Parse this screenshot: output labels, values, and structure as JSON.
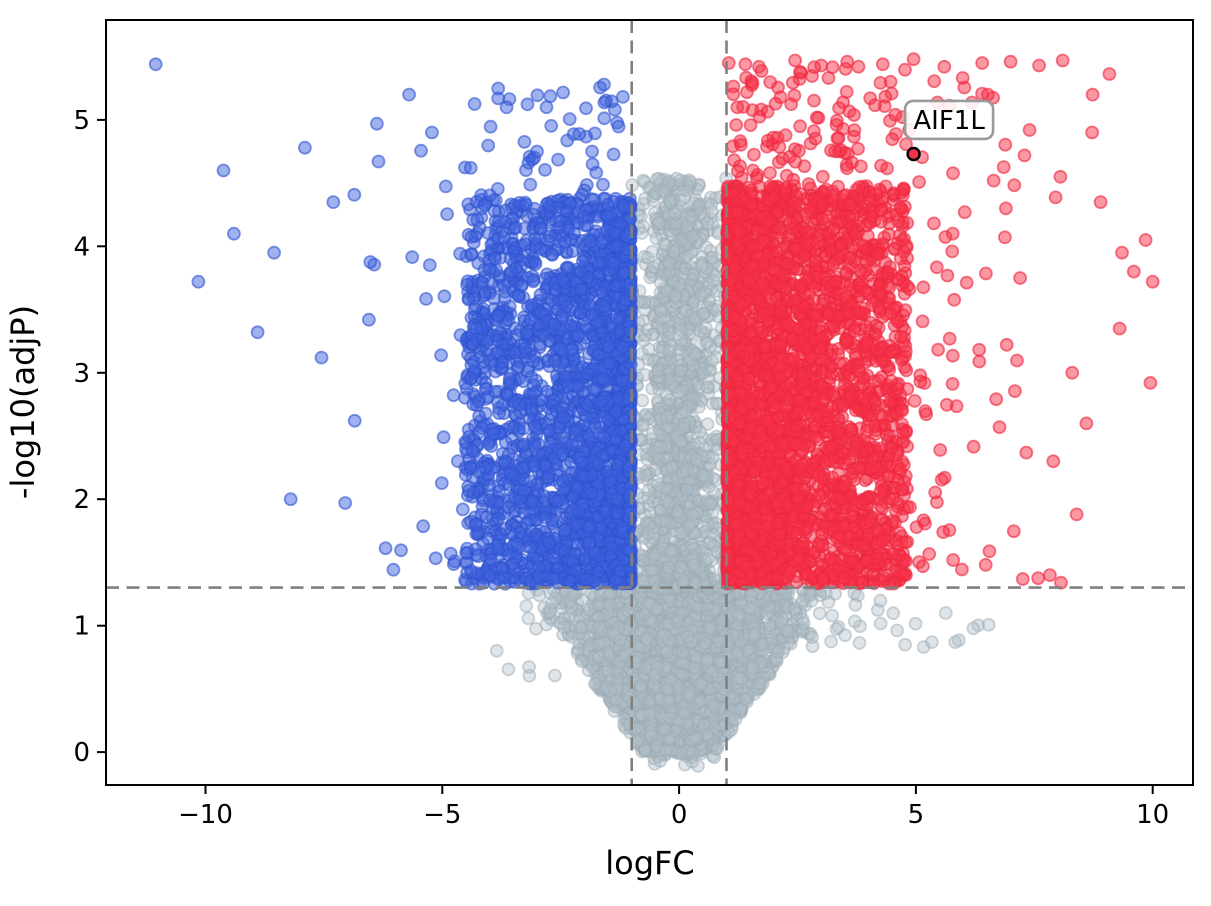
{
  "figure": {
    "background": "#ffffff"
  },
  "chart_data": {
    "type": "scatter",
    "variant": "volcano-plot",
    "title": "",
    "xlabel": "logFC",
    "ylabel": "-log10(adjP)",
    "xlim": [
      -12.1,
      10.85
    ],
    "ylim": [
      -0.26,
      5.79
    ],
    "xticks": {
      "values": [
        -10,
        -5,
        0,
        5,
        10
      ],
      "labels": [
        "−10",
        "−5",
        "0",
        "5",
        "10"
      ]
    },
    "yticks": {
      "values": [
        0,
        1,
        2,
        3,
        4,
        5
      ],
      "labels": [
        "0",
        "1",
        "2",
        "3",
        "4",
        "5"
      ]
    },
    "grid": false,
    "legend": null,
    "threshold_lines": {
      "vertical_x": [
        -1,
        1
      ],
      "horizontal_y": 1.301,
      "color": "#808080",
      "style": "dashed",
      "dash": "13 7.5",
      "width": 2.6
    },
    "marker": {
      "radius": 6,
      "edge_width": 1.8
    },
    "colors": {
      "nonsignificant": "#b1bec7",
      "downregulated": "#3f63de",
      "upregulated": "#f83248",
      "highlight_fill": "#f2334b",
      "highlight_edge": "#000000"
    },
    "alpha": 0.5,
    "seed": 42,
    "annotation": {
      "label": "AIF1L",
      "point": {
        "x": 4.95,
        "y": 4.73
      },
      "label_center": {
        "x": 5.7,
        "y": 5.0
      },
      "box": {
        "border": "#999999",
        "background": "rgba(255,255,255,0.85)",
        "border_width": 2.6,
        "radius": 8
      }
    },
    "highlight_point": {
      "gene": "AIF1L",
      "x": 4.95,
      "y": 4.73
    },
    "series": [
      {
        "name": "nonsignificant-funnel",
        "role": "nonsignificant",
        "fill": "rgba(177,190,199,0.42)",
        "stroke": "rgba(158,172,182,0.5)",
        "gen": {
          "kind": "funnel",
          "count": 2400,
          "xSigma": 1.05,
          "xMax": 4.0,
          "xFlat": 0.78,
          "slope": 0.54,
          "yTop": 1.29
        }
      },
      {
        "name": "nonsignificant-column",
        "role": "nonsignificant",
        "fill": "rgba(177,190,199,0.42)",
        "stroke": "rgba(158,172,182,0.5)",
        "gen": {
          "kind": "column",
          "count": 1300,
          "xSigma": 0.48,
          "xMin": -0.99,
          "xMax": 0.99,
          "yBase": 1.29,
          "ySpan": 3.25,
          "yPow": 1.5
        }
      },
      {
        "name": "nonsignificant-right-wing",
        "role": "nonsignificant",
        "fill": "rgba(177,190,199,0.42)",
        "stroke": "rgba(158,172,182,0.5)",
        "gen": {
          "kind": "band",
          "count": 40,
          "xMin": 2.6,
          "xMax": 6.6,
          "xPow": 1.5,
          "yMin": 0.82,
          "yMax": 1.27
        }
      },
      {
        "name": "nonsignificant-left-wing",
        "role": "nonsignificant",
        "fill": "rgba(177,190,199,0.42)",
        "stroke": "rgba(158,172,182,0.5)",
        "gen": {
          "kind": "band",
          "count": 12,
          "xMin": -3.85,
          "xMax": -2.55,
          "xPow": 1.0,
          "yMin": 0.6,
          "yMax": 1.27
        }
      },
      {
        "name": "downregulated-core",
        "role": "downregulated",
        "fill": "rgba(63,99,222,0.5)",
        "stroke": "rgba(48,84,208,0.6)",
        "gen": {
          "kind": "core",
          "count": 2300,
          "side": -1,
          "xEdge": -1.02,
          "xSpan": 3.5,
          "xPow": 1.8,
          "yBase": 1.33,
          "ySpan": 3.05,
          "yPow": 1.2
        }
      },
      {
        "name": "downregulated-scatter",
        "role": "downregulated",
        "fill": "rgba(63,99,222,0.5)",
        "stroke": "rgba(48,84,208,0.6)",
        "gen": {
          "kind": "scatter",
          "count": 290,
          "side": -1,
          "xStart": -1.1,
          "sigma": 2.1,
          "xMaxDist": 9.6,
          "yBase": 1.33,
          "ySpan": 3.95,
          "yPow": 1.3
        }
      },
      {
        "name": "downregulated-outliers",
        "role": "downregulated",
        "fill": "rgba(63,99,222,0.5)",
        "stroke": "rgba(48,84,208,0.6)",
        "gen": {
          "kind": "explicit"
        },
        "points": [
          [
            -11.05,
            5.44
          ],
          [
            -9.62,
            4.6
          ],
          [
            -10.15,
            3.72
          ],
          [
            -9.4,
            4.1
          ],
          [
            -8.9,
            3.32
          ],
          [
            -8.55,
            3.95
          ],
          [
            -8.2,
            2.0
          ],
          [
            -7.9,
            4.78
          ],
          [
            -7.55,
            3.12
          ],
          [
            -7.3,
            4.35
          ],
          [
            -7.05,
            1.97
          ],
          [
            -6.85,
            2.62
          ],
          [
            -6.55,
            3.42
          ],
          [
            -6.38,
            4.97
          ],
          [
            -5.7,
            5.2
          ],
          [
            -5.22,
            4.9
          ],
          [
            -3.82,
            5.17
          ],
          [
            -2.8,
            5.1
          ],
          [
            -4.4,
            4.62
          ],
          [
            -3.0,
            4.75
          ]
        ]
      },
      {
        "name": "upregulated-core",
        "role": "upregulated",
        "fill": "rgba(247,50,72,0.5)",
        "stroke": "rgba(238,40,64,0.62)",
        "gen": {
          "kind": "core",
          "count": 2900,
          "side": 1,
          "xEdge": 1.02,
          "xSpan": 3.8,
          "xPow": 1.8,
          "yBase": 1.33,
          "ySpan": 3.15,
          "yPow": 1.15
        }
      },
      {
        "name": "upregulated-scatter",
        "role": "upregulated",
        "fill": "rgba(247,50,72,0.5)",
        "stroke": "rgba(238,40,64,0.62)",
        "gen": {
          "kind": "scatter",
          "count": 540,
          "side": 1,
          "xStart": 1.1,
          "sigma": 2.5,
          "xMaxDist": 8.6,
          "yBase": 1.33,
          "ySpan": 4.1,
          "yPow": 1.1
        }
      },
      {
        "name": "upregulated-top-row",
        "role": "upregulated",
        "fill": "rgba(247,50,72,0.5)",
        "stroke": "rgba(238,40,64,0.62)",
        "gen": {
          "kind": "explicit"
        },
        "points": [
          [
            1.05,
            5.45
          ],
          [
            1.4,
            5.44
          ],
          [
            2.45,
            5.47
          ],
          [
            3.0,
            5.43
          ],
          [
            3.55,
            5.46
          ],
          [
            4.3,
            5.44
          ],
          [
            4.95,
            5.48
          ],
          [
            5.6,
            5.42
          ],
          [
            6.4,
            5.45
          ],
          [
            7.0,
            5.46
          ],
          [
            7.6,
            5.43
          ],
          [
            8.1,
            5.47
          ]
        ]
      },
      {
        "name": "upregulated-outliers",
        "role": "upregulated",
        "fill": "rgba(247,50,72,0.5)",
        "stroke": "rgba(238,40,64,0.62)",
        "gen": {
          "kind": "explicit"
        },
        "points": [
          [
            9.85,
            4.05
          ],
          [
            9.6,
            3.8
          ],
          [
            9.35,
            3.95
          ],
          [
            9.3,
            3.35
          ],
          [
            9.95,
            2.92
          ],
          [
            10.0,
            3.72
          ],
          [
            8.9,
            4.35
          ],
          [
            8.72,
            4.9
          ],
          [
            8.73,
            5.2
          ],
          [
            7.4,
            4.92
          ],
          [
            6.52,
            5.2
          ],
          [
            8.3,
            3.0
          ],
          [
            8.6,
            2.6
          ],
          [
            7.9,
            2.3
          ],
          [
            8.05,
            4.55
          ],
          [
            6.9,
            4.3
          ],
          [
            7.2,
            3.75
          ]
        ]
      }
    ]
  }
}
